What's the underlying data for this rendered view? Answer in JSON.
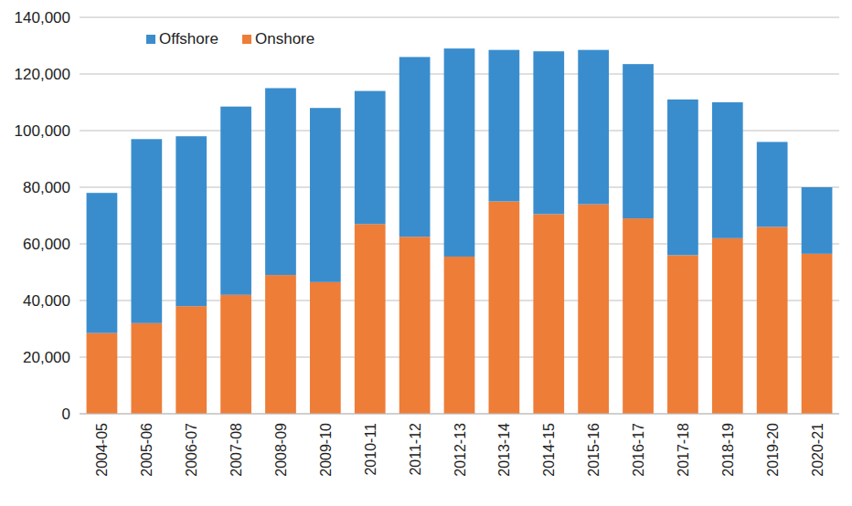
{
  "chart_data": {
    "type": "bar",
    "stacked": true,
    "grid": true,
    "legend": "top-left",
    "categories": [
      "2004-05",
      "2005-06",
      "2006-07",
      "2007-08",
      "2008-09",
      "2009-10",
      "2010-11",
      "2011-12",
      "2012-13",
      "2013-14",
      "2014-15",
      "2015-16",
      "2016-17",
      "2017-18",
      "2018-19",
      "2019-20",
      "2020-21"
    ],
    "series": [
      {
        "name": "Offshore",
        "color": "#3a8dcd",
        "values": [
          49500,
          65000,
          60000,
          66500,
          66000,
          61500,
          47000,
          63500,
          73500,
          53500,
          57500,
          54500,
          54500,
          55000,
          48000,
          30000,
          23500
        ]
      },
      {
        "name": "Onshore",
        "color": "#ee7d38",
        "values": [
          28500,
          32000,
          38000,
          42000,
          49000,
          46500,
          67000,
          62500,
          55500,
          75000,
          70500,
          74000,
          69000,
          56000,
          62000,
          66000,
          56500
        ]
      }
    ],
    "ylim": [
      0,
      140000
    ],
    "yticks": [
      0,
      {
        "value": 20000,
        "label": "20,000"
      },
      {
        "value": 40000,
        "label": "40,000"
      },
      {
        "value": 60000,
        "label": "60,000"
      },
      {
        "value": 80000,
        "label": "80,000"
      },
      {
        "value": 100000,
        "label": "100,000"
      },
      {
        "value": 120000,
        "label": "120,000"
      },
      {
        "value": 140000,
        "label": "140,000"
      }
    ]
  }
}
